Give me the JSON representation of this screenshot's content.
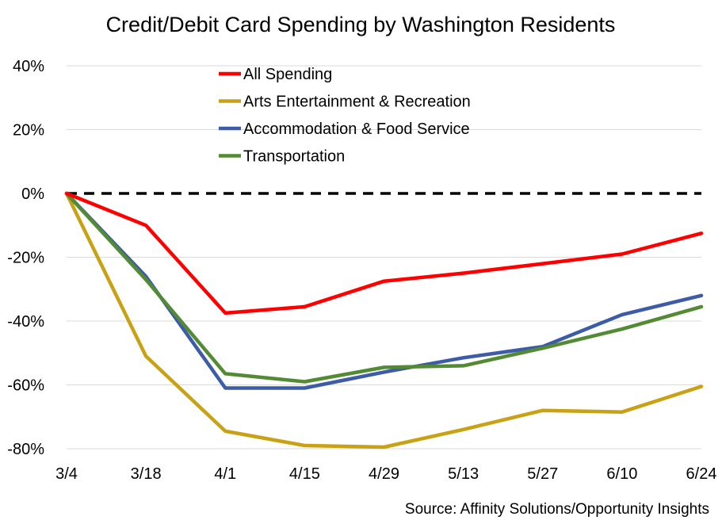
{
  "chart_data": {
    "type": "line",
    "title": "Credit/Debit Card Spending by Washington Residents",
    "source": "Source: Affinity Solutions/Opportunity Insights",
    "categories": [
      "3/4",
      "3/18",
      "4/1",
      "4/15",
      "4/29",
      "5/13",
      "5/27",
      "6/10",
      "6/24"
    ],
    "ylim": [
      -80,
      40
    ],
    "yticks": [
      40,
      20,
      0,
      -20,
      -40,
      -60,
      -80
    ],
    "ytick_labels": [
      "40%",
      "20%",
      "0%",
      "-20%",
      "-40%",
      "-60%",
      "-80%"
    ],
    "grid": true,
    "legend_position": "top-left",
    "reference_line": {
      "y": 0,
      "style": "dashed",
      "color": "#000000"
    },
    "series": [
      {
        "name": "All Spending",
        "color": "#ff0000",
        "values": [
          0,
          -10,
          -37.5,
          -35.5,
          -27.5,
          -25,
          -22,
          -19,
          -12.5
        ]
      },
      {
        "name": "Arts Entertainment & Recreation",
        "color": "#c9a114",
        "values": [
          0,
          -51,
          -74.5,
          -79,
          -79.5,
          -74,
          -68,
          -68.5,
          -60.5
        ]
      },
      {
        "name": "Accommodation & Food Service",
        "color": "#3d5ca8",
        "values": [
          0,
          -26,
          -61,
          -61,
          -56,
          -51.5,
          -48,
          -38,
          -32
        ]
      },
      {
        "name": "Transportation",
        "color": "#538b34",
        "values": [
          0,
          -27,
          -56.5,
          -59,
          -54.5,
          -54,
          -48.5,
          -42.5,
          -35.5
        ]
      }
    ]
  }
}
